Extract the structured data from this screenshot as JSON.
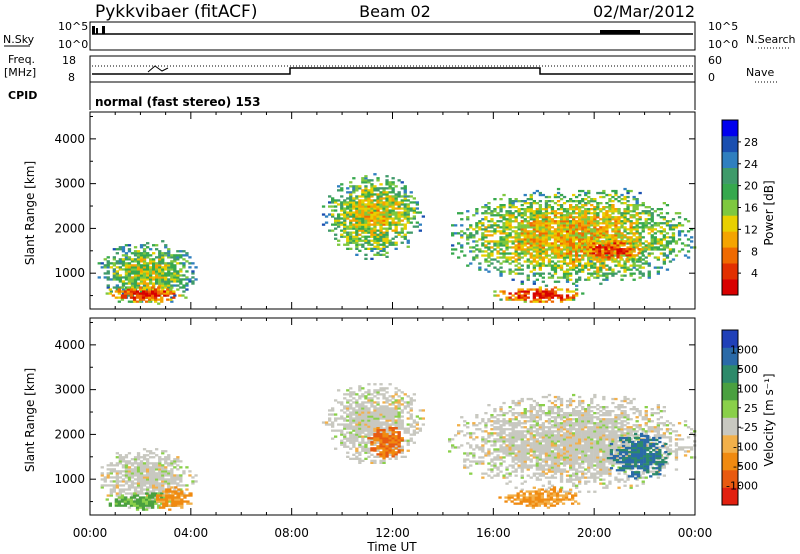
{
  "header": {
    "title": "Pykkvibaer (fitACF)",
    "beam": "Beam 02",
    "date": "02/Mar/2012"
  },
  "nsky_panel": {
    "left_label": "N.Sky",
    "left_ticks": [
      "10^5",
      "10^0"
    ],
    "right_ticks": [
      "10^5",
      "10^0"
    ],
    "right_label": "N.Search"
  },
  "freq_panel": {
    "label_line1": "Freq.",
    "label_line2": "[MHz]",
    "left_ticks": [
      "18",
      "8"
    ],
    "right_ticks": [
      "60",
      "0"
    ],
    "right_label": "Nave"
  },
  "cpid": {
    "label": "CPID",
    "value": "normal (fast stereo) 153"
  },
  "time_axis": {
    "ticks": [
      "00:00",
      "04:00",
      "08:00",
      "12:00",
      "16:00",
      "20:00",
      "00:00"
    ],
    "label": "Time UT"
  },
  "power_panel": {
    "ylabel": "Slant Range [km]",
    "yticks": [
      "4000",
      "3000",
      "2000",
      "1000"
    ],
    "colorbar_label": "Power [dB]",
    "colorbar_ticks": [
      "28",
      "24",
      "20",
      "16",
      "12",
      "8",
      "4"
    ],
    "colors": [
      "#0000ee",
      "#1a4fb0",
      "#2f7fbf",
      "#3f9a6a",
      "#36a84d",
      "#7ec83f",
      "#e8d000",
      "#f4a400",
      "#ef6a00",
      "#e23000",
      "#d80000"
    ]
  },
  "velocity_panel": {
    "ylabel": "Slant Range [km]",
    "yticks": [
      "4000",
      "3000",
      "2000",
      "1000"
    ],
    "colorbar_label": "Velocity [m s⁻¹]",
    "colorbar_ticks": [
      "1000",
      "500",
      "100",
      "25",
      "-25",
      "-100",
      "-500",
      "-1000"
    ],
    "colors": [
      "#2040b8",
      "#2a6aa8",
      "#2d8a6a",
      "#4aa040",
      "#8ad04a",
      "#c8c8c0",
      "#f2b04a",
      "#f08a10",
      "#e85a10",
      "#e22010"
    ]
  },
  "chart_data": [
    {
      "type": "heatmap",
      "title": "Power",
      "xlabel": "Time UT",
      "ylabel": "Slant Range [km]",
      "xlim": [
        0,
        24
      ],
      "ylim": [
        200,
        4600
      ],
      "colorbar": {
        "label": "Power [dB]",
        "ticks": [
          4,
          8,
          12,
          16,
          20,
          24,
          28
        ]
      },
      "regions": [
        {
          "t": [
            0.3,
            4.2
          ],
          "range": [
            300,
            1700
          ],
          "level": 0.55
        },
        {
          "t": [
            0.5,
            3.8
          ],
          "range": [
            300,
            700
          ],
          "level": 0.95
        },
        {
          "t": [
            9.2,
            13.2
          ],
          "range": [
            1300,
            3200
          ],
          "level": 0.6
        },
        {
          "t": [
            14.2,
            24.0
          ],
          "range": [
            700,
            2900
          ],
          "level": 0.65
        },
        {
          "t": [
            16.0,
            19.6
          ],
          "range": [
            300,
            700
          ],
          "level": 1.0
        },
        {
          "t": [
            19.2,
            22.0
          ],
          "range": [
            1200,
            1800
          ],
          "level": 0.9
        }
      ]
    },
    {
      "type": "heatmap",
      "title": "Velocity",
      "xlabel": "Time UT",
      "ylabel": "Slant Range [km]",
      "xlim": [
        0,
        24
      ],
      "ylim": [
        200,
        4600
      ],
      "colorbar": {
        "label": "Velocity [m s⁻¹]",
        "ticks": [
          1000,
          500,
          100,
          25,
          -25,
          -100,
          -500,
          -1000
        ]
      },
      "regions": [
        {
          "t": [
            0.3,
            4.2
          ],
          "range": [
            300,
            1700
          ],
          "value": 25
        },
        {
          "t": [
            0.5,
            3.8
          ],
          "range": [
            300,
            700
          ],
          "value": 100
        },
        {
          "t": [
            2.5,
            4.0
          ],
          "range": [
            300,
            800
          ],
          "value": -100
        },
        {
          "t": [
            9.2,
            13.2
          ],
          "range": [
            1300,
            3200
          ],
          "value": 0
        },
        {
          "t": [
            11.0,
            12.5
          ],
          "range": [
            1400,
            2200
          ],
          "value": -500
        },
        {
          "t": [
            14.2,
            24.0
          ],
          "range": [
            700,
            2900
          ],
          "value": 0
        },
        {
          "t": [
            16.2,
            19.5
          ],
          "range": [
            300,
            800
          ],
          "value": -100
        },
        {
          "t": [
            20.5,
            23.0
          ],
          "range": [
            1000,
            2000
          ],
          "value": 500
        }
      ]
    }
  ]
}
